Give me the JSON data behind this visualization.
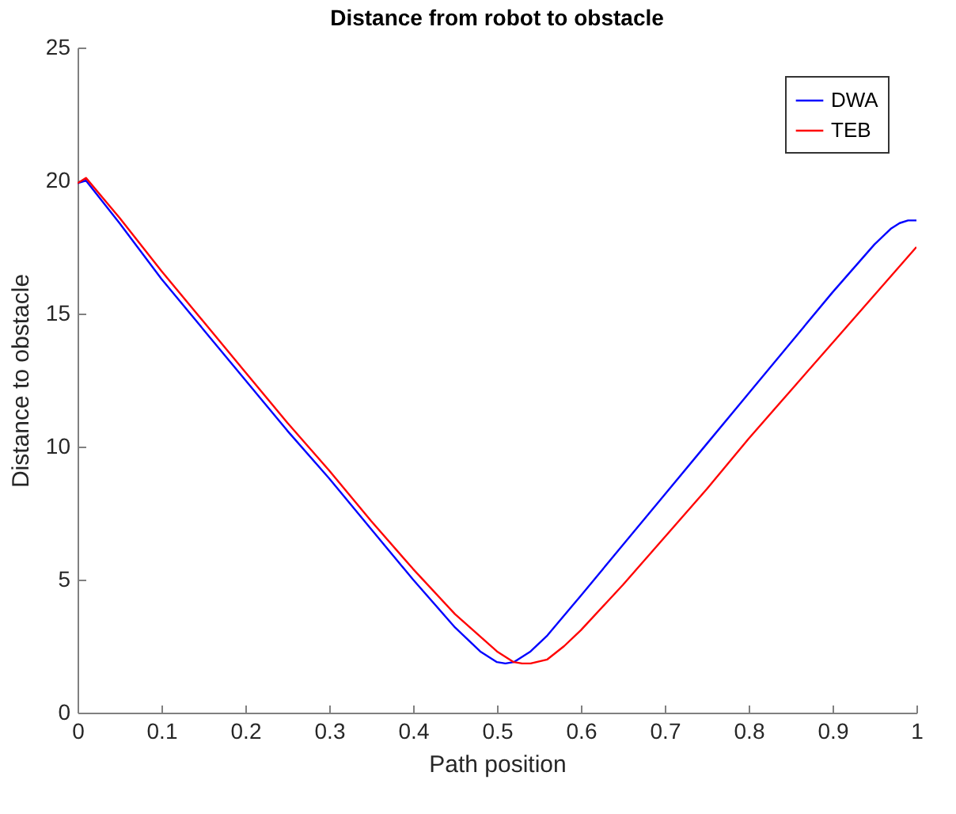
{
  "chart_data": {
    "type": "line",
    "title": "Distance from robot to obstacle",
    "xlabel": "Path position",
    "ylabel": "Distance to obstacle",
    "xlim": [
      0,
      1
    ],
    "xticks": [
      0,
      0.1,
      0.2,
      0.3,
      0.4,
      0.5,
      0.6,
      0.7,
      0.8,
      0.9,
      1
    ],
    "ylim": [
      0,
      25
    ],
    "yticks": [
      0,
      5,
      10,
      15,
      20,
      25
    ],
    "grid": false,
    "legend": "top right",
    "line_style": "solid",
    "marker": "none",
    "series": [
      {
        "name": "DWA",
        "color": "#0000ff",
        "x": [
          0,
          0.01,
          0.05,
          0.1,
          0.15,
          0.2,
          0.25,
          0.3,
          0.35,
          0.4,
          0.45,
          0.48,
          0.5,
          0.51,
          0.52,
          0.54,
          0.56,
          0.6,
          0.65,
          0.7,
          0.75,
          0.8,
          0.85,
          0.9,
          0.95,
          0.97,
          0.98,
          0.99,
          1
        ],
        "values": [
          19.9,
          20,
          18.4,
          16.3,
          14.4,
          12.5,
          10.6,
          8.8,
          6.9,
          5.0,
          3.2,
          2.3,
          1.9,
          1.85,
          1.9,
          2.3,
          2.9,
          4.4,
          6.3,
          8.2,
          10.1,
          12.0,
          13.9,
          15.8,
          17.6,
          18.2,
          18.4,
          18.5,
          18.5
        ]
      },
      {
        "name": "TEB",
        "color": "#ff0000",
        "x": [
          0,
          0.01,
          0.05,
          0.1,
          0.15,
          0.2,
          0.25,
          0.3,
          0.35,
          0.4,
          0.45,
          0.5,
          0.52,
          0.53,
          0.54,
          0.56,
          0.58,
          0.6,
          0.65,
          0.7,
          0.75,
          0.8,
          0.85,
          0.9,
          0.95,
          1
        ],
        "values": [
          19.9,
          20.1,
          18.6,
          16.6,
          14.7,
          12.8,
          10.9,
          9.1,
          7.2,
          5.4,
          3.7,
          2.3,
          1.9,
          1.85,
          1.85,
          2.0,
          2.5,
          3.1,
          4.8,
          6.6,
          8.4,
          10.3,
          12.1,
          13.9,
          15.7,
          17.5
        ]
      }
    ]
  }
}
